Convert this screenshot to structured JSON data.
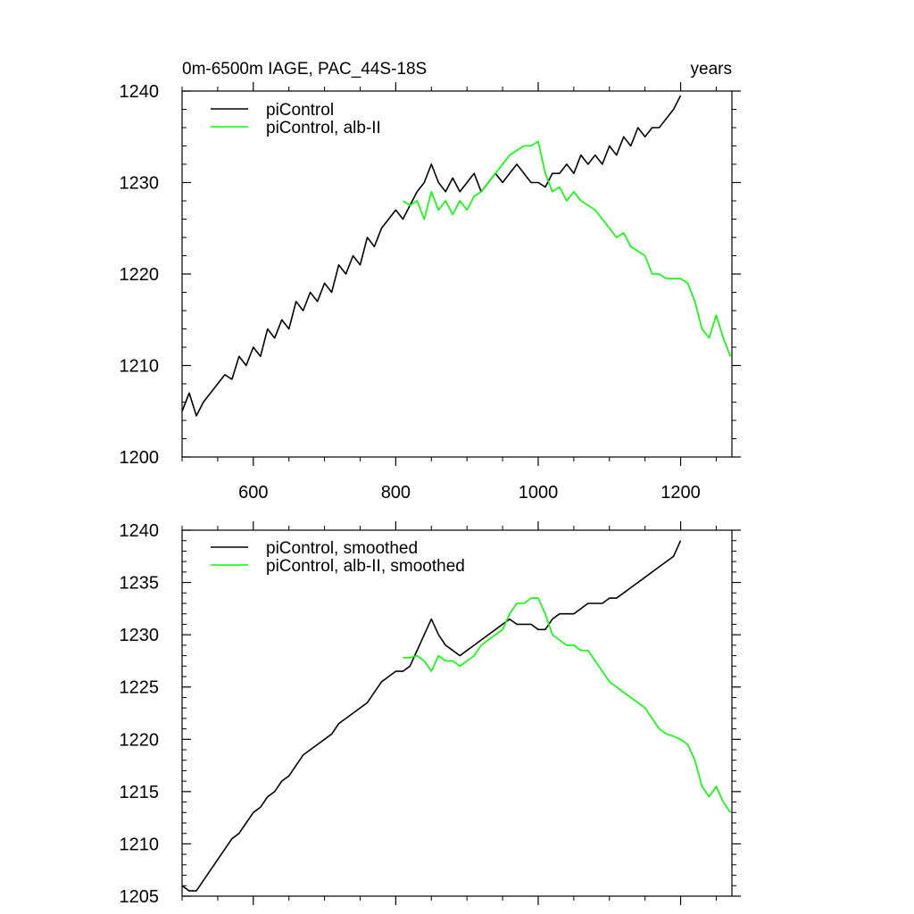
{
  "chart_data": [
    {
      "type": "line",
      "title": "0m-6500m IAGE, PAC_44S-18S",
      "title_right": "years",
      "xlabel": "",
      "ylabel": "",
      "xlim": [
        500,
        1272
      ],
      "ylim": [
        1200,
        1240
      ],
      "xticks": [
        600,
        800,
        1000,
        1200
      ],
      "xtick_labels": [
        "600",
        "800",
        "1000",
        "1200"
      ],
      "yticks": [
        1200,
        1210,
        1220,
        1230,
        1240
      ],
      "ytick_labels": [
        "1200",
        "1210",
        "1220",
        "1230",
        "1240"
      ],
      "grid": false,
      "legend_position": "top-left",
      "series": [
        {
          "name": "piControl",
          "color": "#000000",
          "x": [
            500,
            510,
            520,
            530,
            540,
            550,
            560,
            570,
            580,
            590,
            600,
            610,
            620,
            630,
            640,
            650,
            660,
            670,
            680,
            690,
            700,
            710,
            720,
            730,
            740,
            750,
            760,
            770,
            780,
            790,
            800,
            810,
            820,
            830,
            840,
            850,
            860,
            870,
            880,
            890,
            900,
            910,
            920,
            930,
            940,
            950,
            960,
            970,
            980,
            990,
            1000,
            1010,
            1020,
            1030,
            1040,
            1050,
            1060,
            1070,
            1080,
            1090,
            1100,
            1110,
            1120,
            1130,
            1140,
            1150,
            1160,
            1170,
            1180,
            1190,
            1200
          ],
          "y": [
            1205,
            1207,
            1204.5,
            1206,
            1207,
            1208,
            1209,
            1208.5,
            1211,
            1210,
            1212,
            1211,
            1214,
            1213,
            1215,
            1214,
            1217,
            1216,
            1218,
            1217,
            1219,
            1218,
            1221,
            1220,
            1222,
            1221,
            1224,
            1223,
            1225,
            1226,
            1227,
            1226,
            1227.5,
            1229,
            1230,
            1232,
            1230,
            1229,
            1230.5,
            1229,
            1230,
            1231,
            1229,
            1230,
            1231,
            1230,
            1231,
            1232,
            1231,
            1230,
            1230,
            1229.5,
            1231,
            1231,
            1232,
            1231,
            1233,
            1232,
            1233,
            1232,
            1234,
            1233,
            1235,
            1234,
            1236,
            1235,
            1236,
            1236,
            1237,
            1238,
            1239.5
          ]
        },
        {
          "name": "piControl, alb-II",
          "color": "#00ff00",
          "x": [
            810,
            820,
            830,
            840,
            850,
            860,
            870,
            880,
            890,
            900,
            910,
            920,
            930,
            940,
            950,
            960,
            970,
            980,
            990,
            1000,
            1010,
            1020,
            1030,
            1040,
            1050,
            1060,
            1070,
            1080,
            1090,
            1100,
            1110,
            1120,
            1130,
            1140,
            1150,
            1160,
            1170,
            1180,
            1190,
            1200,
            1210,
            1220,
            1230,
            1240,
            1250,
            1260,
            1270
          ],
          "y": [
            1228,
            1227.5,
            1228,
            1226,
            1229,
            1227,
            1228,
            1226.5,
            1228,
            1227,
            1228.5,
            1229,
            1230,
            1231,
            1232,
            1233,
            1233.5,
            1234,
            1234,
            1234.5,
            1231,
            1229,
            1229.5,
            1228,
            1229,
            1228,
            1227.5,
            1227,
            1226,
            1225,
            1224,
            1224.5,
            1223,
            1222.5,
            1222,
            1220,
            1220,
            1219.5,
            1219.5,
            1219.5,
            1219,
            1217,
            1214,
            1213,
            1215.5,
            1213,
            1211
          ]
        }
      ]
    },
    {
      "type": "line",
      "title": "",
      "xlabel": "",
      "ylabel": "",
      "xlim": [
        500,
        1272
      ],
      "ylim": [
        1205,
        1240
      ],
      "xticks": [
        600,
        800,
        1000,
        1200
      ],
      "yticks": [
        1205,
        1210,
        1215,
        1220,
        1225,
        1230,
        1235,
        1240
      ],
      "ytick_labels": [
        "1205",
        "1210",
        "1215",
        "1220",
        "1225",
        "1230",
        "1235",
        "1240"
      ],
      "grid": false,
      "legend_position": "top-left",
      "series": [
        {
          "name": "piControl, smoothed",
          "color": "#000000",
          "x": [
            500,
            510,
            520,
            530,
            540,
            550,
            560,
            570,
            580,
            590,
            600,
            610,
            620,
            630,
            640,
            650,
            660,
            670,
            680,
            690,
            700,
            710,
            720,
            730,
            740,
            750,
            760,
            770,
            780,
            790,
            800,
            810,
            820,
            830,
            840,
            850,
            860,
            870,
            880,
            890,
            900,
            910,
            920,
            930,
            940,
            950,
            960,
            970,
            980,
            990,
            1000,
            1010,
            1020,
            1030,
            1040,
            1050,
            1060,
            1070,
            1080,
            1090,
            1100,
            1110,
            1120,
            1130,
            1140,
            1150,
            1160,
            1170,
            1180,
            1190,
            1200
          ],
          "y": [
            1206,
            1205.5,
            1205.5,
            1206.5,
            1207.5,
            1208.5,
            1209.5,
            1210.5,
            1211,
            1212,
            1213,
            1213.5,
            1214.5,
            1215,
            1216,
            1216.5,
            1217.5,
            1218.5,
            1219,
            1219.5,
            1220,
            1220.5,
            1221.5,
            1222,
            1222.5,
            1223,
            1223.5,
            1224.5,
            1225.5,
            1226,
            1226.5,
            1226.5,
            1227,
            1228.5,
            1230,
            1231.5,
            1230,
            1229,
            1228.5,
            1228,
            1228.5,
            1229,
            1229.5,
            1230,
            1230.5,
            1231,
            1231.5,
            1231,
            1231,
            1231,
            1230.5,
            1230.5,
            1231.5,
            1232,
            1232,
            1232,
            1232.5,
            1233,
            1233,
            1233,
            1233.5,
            1233.5,
            1234,
            1234.5,
            1235,
            1235.5,
            1236,
            1236.5,
            1237,
            1237.5,
            1239
          ]
        },
        {
          "name": "piControl, alb-II, smoothed",
          "color": "#00ff00",
          "x": [
            810,
            820,
            830,
            840,
            850,
            860,
            870,
            880,
            890,
            900,
            910,
            920,
            930,
            940,
            950,
            960,
            970,
            980,
            990,
            1000,
            1010,
            1020,
            1030,
            1040,
            1050,
            1060,
            1070,
            1080,
            1090,
            1100,
            1110,
            1120,
            1130,
            1140,
            1150,
            1160,
            1170,
            1180,
            1190,
            1200,
            1210,
            1220,
            1230,
            1240,
            1250,
            1260,
            1270
          ],
          "y": [
            1227.8,
            1227.8,
            1228,
            1227.5,
            1226.5,
            1228,
            1227.5,
            1227.5,
            1227,
            1227.5,
            1228,
            1229,
            1229.5,
            1230,
            1230.5,
            1232,
            1233,
            1233,
            1233.5,
            1233.5,
            1232,
            1230,
            1229.5,
            1229,
            1229,
            1228.5,
            1228.5,
            1227.5,
            1226.5,
            1225.5,
            1225,
            1224.5,
            1224,
            1223.5,
            1223,
            1222,
            1221,
            1220.5,
            1220.3,
            1220,
            1219.5,
            1218,
            1215.5,
            1214.5,
            1215.5,
            1214,
            1213
          ]
        }
      ]
    }
  ]
}
